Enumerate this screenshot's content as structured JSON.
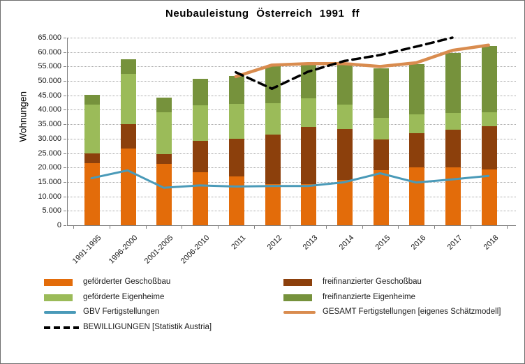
{
  "chart_data": {
    "type": "bar",
    "subtype": "stacked-bars-with-lines",
    "title": "Neubauleistung Österreich 1991 ff",
    "xlabel": "",
    "ylabel": "Wohnungen",
    "ylim": [
      0,
      65000
    ],
    "ytick_step": 5000,
    "grid": "horizontal-dotted",
    "legend_position": "bottom",
    "ytick_labels": [
      "0",
      "5.000",
      "10.000",
      "15.000",
      "20.000",
      "25.000",
      "30.000",
      "35.000",
      "40.000",
      "45.000",
      "50.000",
      "55.000",
      "60.000",
      "65.000"
    ],
    "categories": [
      "1991-1995",
      "1996-2000",
      "2001-2005",
      "2006-2010",
      "2011",
      "2012",
      "2013",
      "2014",
      "2015",
      "2016",
      "2017",
      "2018"
    ],
    "series": [
      {
        "name": "geförderter Geschoßbau",
        "render": "bar",
        "color": "#E36C0A",
        "values": [
          21500,
          26500,
          21200,
          18300,
          17000,
          14300,
          14200,
          15700,
          19000,
          20000,
          20000,
          19400
        ]
      },
      {
        "name": "freifinanzierter Geschoßbau",
        "render": "bar",
        "color": "#8C400C",
        "values": [
          3500,
          8500,
          3500,
          10900,
          12900,
          17200,
          19800,
          17600,
          10800,
          11800,
          13100,
          14800
        ]
      },
      {
        "name": "geförderte Eigenheime",
        "render": "bar",
        "color": "#9BBB59",
        "values": [
          16800,
          17500,
          14500,
          12400,
          12100,
          10900,
          10000,
          8600,
          7400,
          6700,
          5700,
          5000
        ]
      },
      {
        "name": "freifinanzierte Eigenheime",
        "render": "bar",
        "color": "#76923C",
        "values": [
          3400,
          4900,
          5100,
          9200,
          9700,
          12600,
          11800,
          14100,
          17200,
          17300,
          21000,
          22800
        ]
      },
      {
        "name": "GBV Fertigstellungen",
        "render": "line",
        "color": "#4A9AB8",
        "stroke_width": 3,
        "values": [
          16300,
          19000,
          13000,
          13800,
          13400,
          13600,
          13600,
          14900,
          18000,
          14800,
          15900,
          17100
        ]
      },
      {
        "name": "GESAMT Fertigstellungen [eigenes Schätzmodell]",
        "render": "line",
        "color": "#D98C4F",
        "stroke_width": 4.5,
        "values": [
          null,
          null,
          null,
          null,
          51500,
          55500,
          56000,
          56000,
          55000,
          56300,
          60600,
          62400
        ]
      },
      {
        "name": "BEWILLIGUNGEN [Statistik Austria]",
        "render": "dashed-line",
        "color": "#000000",
        "stroke_width": 3.5,
        "values": [
          null,
          null,
          null,
          null,
          53000,
          47300,
          53200,
          56900,
          59000,
          61900,
          65000,
          null
        ]
      }
    ],
    "stacked_totals": [
      45200,
      57400,
      44300,
      50800,
      51700,
      55000,
      55800,
      56000,
      54400,
      55800,
      59800,
      62000
    ],
    "legend": [
      {
        "label": "geförderter Geschoßbau",
        "swatch": "bar",
        "color": "#E36C0A",
        "col": 0,
        "row": 0
      },
      {
        "label": "freifinanzierter Geschoßbau",
        "swatch": "bar",
        "color": "#8C400C",
        "col": 1,
        "row": 0
      },
      {
        "label": "geförderte Eigenheime",
        "swatch": "bar",
        "color": "#9BBB59",
        "col": 0,
        "row": 1
      },
      {
        "label": "freifinanzierte Eigenheime",
        "swatch": "bar",
        "color": "#76923C",
        "col": 1,
        "row": 1
      },
      {
        "label": "GBV Fertigstellungen",
        "swatch": "line",
        "color": "#4A9AB8",
        "col": 0,
        "row": 2
      },
      {
        "label": "GESAMT Fertigstellungen [eigenes Schätzmodell]",
        "swatch": "line",
        "color": "#D98C4F",
        "col": 1,
        "row": 2
      },
      {
        "label": "BEWILLIGUNGEN [Statistik Austria]",
        "swatch": "dash",
        "color": "#000000",
        "col": 0,
        "row": 3
      }
    ],
    "colors": {
      "grid": "#A6A6A6",
      "axis": "#808080",
      "background": "#FFFFFF"
    }
  }
}
